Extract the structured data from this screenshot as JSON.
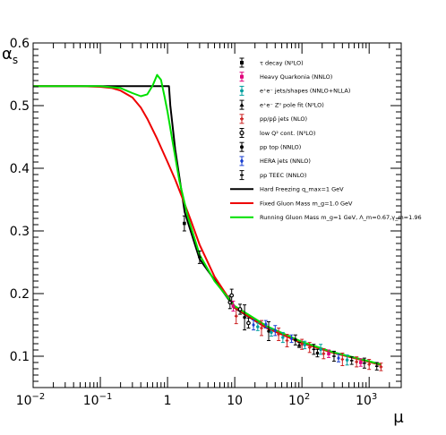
{
  "chart_data": {
    "type": "scatter",
    "title": "",
    "xlabel": "μ",
    "ylabel": "αs",
    "xscale": "log",
    "xlim": [
      0.01,
      3000
    ],
    "ylim": [
      0.05,
      0.6
    ],
    "grid": false,
    "legend_position": "top-right",
    "x_tick_values": [
      0.01,
      0.1,
      1,
      10,
      100,
      1000
    ],
    "x_tick_labels": [
      {
        "base": "10",
        "exp": "−2"
      },
      {
        "base": "10",
        "exp": "−1"
      },
      {
        "base": "1",
        "exp": ""
      },
      {
        "base": "10",
        "exp": ""
      },
      {
        "base": "10",
        "exp": "2"
      },
      {
        "base": "10",
        "exp": "3"
      }
    ],
    "y_tick_values": [
      0.1,
      0.2,
      0.3,
      0.4,
      0.5,
      0.6
    ],
    "y_tick_labels": [
      "0.1",
      "0.2",
      "0.3",
      "0.4",
      "0.5",
      "0.6"
    ],
    "legend": [
      {
        "kind": "marker",
        "marker": "square",
        "color": "#000000",
        "label": "τ decay (N³LO)"
      },
      {
        "kind": "marker",
        "marker": "square",
        "color": "#e0007a",
        "label": "Heavy Quarkonia (NNLO)"
      },
      {
        "kind": "marker",
        "marker": "star",
        "color": "#009f9f",
        "label": "e⁺e⁻ jets/shapes (NNLO+NLLA)"
      },
      {
        "kind": "marker",
        "marker": "triangle",
        "color": "#000000",
        "label": "e⁺e⁻ Z⁰ pole fit (N³LO)"
      },
      {
        "kind": "marker",
        "marker": "cross",
        "color": "#cc2222",
        "label": "pp/pp̄ jets (NLO)"
      },
      {
        "kind": "marker",
        "marker": "circle-open",
        "color": "#000000",
        "label": "low Q² cont. (N³LO)"
      },
      {
        "kind": "marker",
        "marker": "circle",
        "color": "#000000",
        "label": "pp top (NNLO)"
      },
      {
        "kind": "marker",
        "marker": "diamond",
        "color": "#1a3fd0",
        "label": "HERA jets (NNLO)"
      },
      {
        "kind": "marker",
        "marker": "dash",
        "color": "#000000",
        "label": "pp TEEC (NNLO)"
      },
      {
        "kind": "line",
        "color": "#000000",
        "label": "Hard Freezing q_max=1 GeV"
      },
      {
        "kind": "line",
        "color": "#ee0000",
        "label": "Fixed Gluon Mass m_g=1.0 GeV"
      },
      {
        "kind": "line",
        "color": "#00e000",
        "label": "Running Gluon Mass m_g=1 GeV, Λ_m=0.67,γ_m=1.96"
      }
    ],
    "series": [
      {
        "kind": "line",
        "color": "#000000",
        "x": [
          0.01,
          0.05,
          0.1,
          0.3,
          0.6,
          0.9,
          1.05,
          1.1,
          1.3,
          1.8,
          3,
          10,
          30,
          100,
          300,
          1000,
          1500
        ],
        "y": [
          0.531,
          0.531,
          0.531,
          0.531,
          0.531,
          0.531,
          0.531,
          0.5,
          0.43,
          0.33,
          0.255,
          0.177,
          0.145,
          0.122,
          0.106,
          0.091,
          0.086
        ]
      },
      {
        "kind": "line",
        "color": "#ee0000",
        "x": [
          0.01,
          0.05,
          0.1,
          0.15,
          0.2,
          0.3,
          0.4,
          0.5,
          0.7,
          1.0,
          1.3,
          1.7,
          2.2,
          3,
          5,
          10,
          30,
          100,
          300,
          1000,
          1500
        ],
        "y": [
          0.531,
          0.531,
          0.53,
          0.528,
          0.524,
          0.513,
          0.497,
          0.479,
          0.447,
          0.41,
          0.382,
          0.35,
          0.318,
          0.278,
          0.227,
          0.178,
          0.145,
          0.121,
          0.105,
          0.091,
          0.086
        ]
      },
      {
        "kind": "line",
        "color": "#00e000",
        "x": [
          0.01,
          0.05,
          0.1,
          0.2,
          0.3,
          0.4,
          0.5,
          0.6,
          0.7,
          0.8,
          0.9,
          1.0,
          1.2,
          1.5,
          2,
          3,
          5,
          10,
          30,
          100,
          300,
          1000,
          1500
        ],
        "y": [
          0.531,
          0.531,
          0.531,
          0.528,
          0.52,
          0.515,
          0.518,
          0.532,
          0.549,
          0.541,
          0.515,
          0.49,
          0.44,
          0.38,
          0.323,
          0.262,
          0.22,
          0.18,
          0.148,
          0.123,
          0.106,
          0.092,
          0.087
        ]
      },
      {
        "kind": "points",
        "points": [
          {
            "x": 1.78,
            "y": 0.312,
            "err": 0.012,
            "color": "#000000",
            "marker": "square"
          },
          {
            "x": 3.0,
            "y": 0.258,
            "err": 0.01,
            "color": "#000000",
            "marker": "cross"
          },
          {
            "x": 8.5,
            "y": 0.186,
            "err": 0.01,
            "color": "#000000",
            "marker": "circle-open"
          },
          {
            "x": 9.0,
            "y": 0.197,
            "err": 0.01,
            "color": "#000000",
            "marker": "circle-open"
          },
          {
            "x": 9.5,
            "y": 0.18,
            "err": 0.008,
            "color": "#e0007a",
            "marker": "square"
          },
          {
            "x": 10.5,
            "y": 0.164,
            "err": 0.012,
            "color": "#cc2222",
            "marker": "cross"
          },
          {
            "x": 12,
            "y": 0.175,
            "err": 0.008,
            "color": "#000000",
            "marker": "circle-open"
          },
          {
            "x": 14,
            "y": 0.162,
            "err": 0.02,
            "color": "#000000",
            "marker": "circle"
          },
          {
            "x": 16,
            "y": 0.153,
            "err": 0.008,
            "color": "#000000",
            "marker": "circle-open"
          },
          {
            "x": 19,
            "y": 0.15,
            "err": 0.008,
            "color": "#1a3fd0",
            "marker": "diamond"
          },
          {
            "x": 22,
            "y": 0.147,
            "err": 0.006,
            "color": "#009f9f",
            "marker": "star"
          },
          {
            "x": 25,
            "y": 0.145,
            "err": 0.012,
            "color": "#cc2222",
            "marker": "cross"
          },
          {
            "x": 29,
            "y": 0.151,
            "err": 0.006,
            "color": "#1a3fd0",
            "marker": "diamond"
          },
          {
            "x": 32,
            "y": 0.14,
            "err": 0.015,
            "color": "#000000",
            "marker": "circle"
          },
          {
            "x": 35,
            "y": 0.138,
            "err": 0.006,
            "color": "#009f9f",
            "marker": "star"
          },
          {
            "x": 40,
            "y": 0.141,
            "err": 0.008,
            "color": "#1a3fd0",
            "marker": "diamond"
          },
          {
            "x": 45,
            "y": 0.135,
            "err": 0.01,
            "color": "#cc2222",
            "marker": "cross"
          },
          {
            "x": 52,
            "y": 0.13,
            "err": 0.008,
            "color": "#009f9f",
            "marker": "star"
          },
          {
            "x": 60,
            "y": 0.125,
            "err": 0.01,
            "color": "#cc2222",
            "marker": "cross"
          },
          {
            "x": 70,
            "y": 0.128,
            "err": 0.006,
            "color": "#1a3fd0",
            "marker": "diamond"
          },
          {
            "x": 80,
            "y": 0.126,
            "err": 0.008,
            "color": "#000000",
            "marker": "circle"
          },
          {
            "x": 91,
            "y": 0.118,
            "err": 0.004,
            "color": "#000000",
            "marker": "triangle"
          },
          {
            "x": 100,
            "y": 0.119,
            "err": 0.008,
            "color": "#cc2222",
            "marker": "cross"
          },
          {
            "x": 110,
            "y": 0.118,
            "err": 0.006,
            "color": "#009f9f",
            "marker": "star"
          },
          {
            "x": 130,
            "y": 0.114,
            "err": 0.008,
            "color": "#cc2222",
            "marker": "cross"
          },
          {
            "x": 150,
            "y": 0.111,
            "err": 0.008,
            "color": "#000000",
            "marker": "dash"
          },
          {
            "x": 170,
            "y": 0.105,
            "err": 0.006,
            "color": "#000000",
            "marker": "circle"
          },
          {
            "x": 190,
            "y": 0.111,
            "err": 0.008,
            "color": "#009f9f",
            "marker": "star"
          },
          {
            "x": 210,
            "y": 0.104,
            "err": 0.008,
            "color": "#cc2222",
            "marker": "cross"
          },
          {
            "x": 250,
            "y": 0.104,
            "err": 0.006,
            "color": "#e0007a",
            "marker": "square"
          },
          {
            "x": 300,
            "y": 0.1,
            "err": 0.008,
            "color": "#000000",
            "marker": "dash"
          },
          {
            "x": 350,
            "y": 0.097,
            "err": 0.006,
            "color": "#1a3fd0",
            "marker": "diamond"
          },
          {
            "x": 400,
            "y": 0.095,
            "err": 0.01,
            "color": "#cc2222",
            "marker": "cross"
          },
          {
            "x": 470,
            "y": 0.094,
            "err": 0.008,
            "color": "#009f9f",
            "marker": "star"
          },
          {
            "x": 550,
            "y": 0.093,
            "err": 0.006,
            "color": "#000000",
            "marker": "dash"
          },
          {
            "x": 650,
            "y": 0.091,
            "err": 0.008,
            "color": "#cc2222",
            "marker": "cross"
          },
          {
            "x": 750,
            "y": 0.09,
            "err": 0.006,
            "color": "#e0007a",
            "marker": "square"
          },
          {
            "x": 850,
            "y": 0.089,
            "err": 0.008,
            "color": "#000000",
            "marker": "dash"
          },
          {
            "x": 1000,
            "y": 0.087,
            "err": 0.008,
            "color": "#cc2222",
            "marker": "cross"
          },
          {
            "x": 1300,
            "y": 0.084,
            "err": 0.006,
            "color": "#000000",
            "marker": "dash"
          },
          {
            "x": 1500,
            "y": 0.083,
            "err": 0.006,
            "color": "#cc2222",
            "marker": "cross"
          }
        ]
      }
    ]
  }
}
